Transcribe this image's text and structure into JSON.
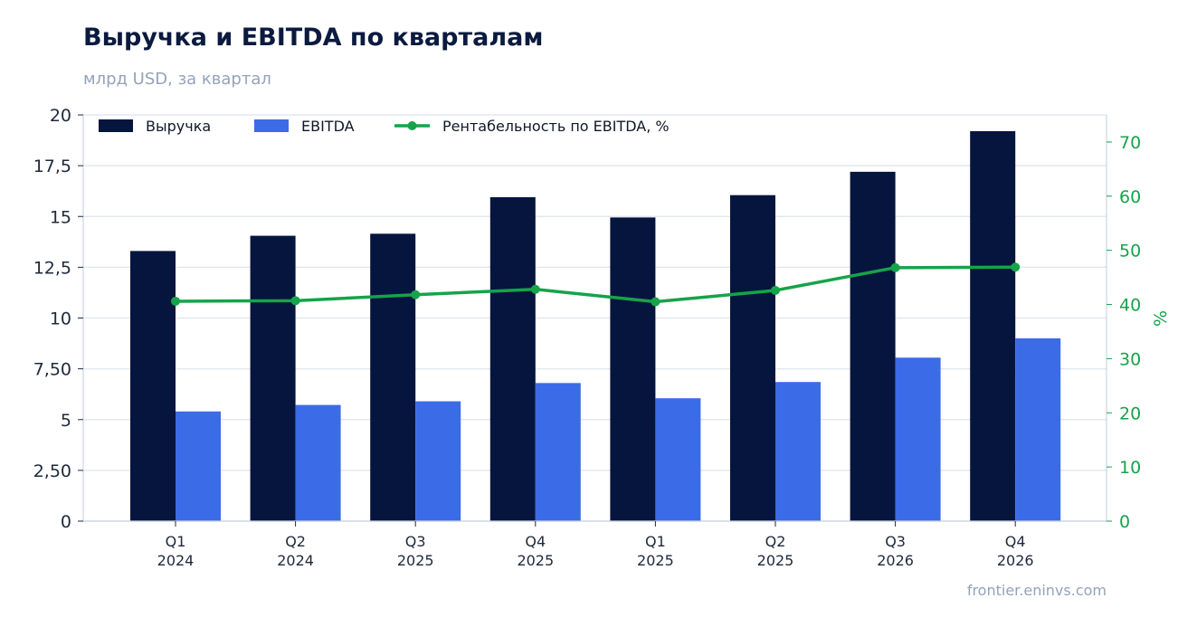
{
  "title": "Выручка и EBITDA по кварталам",
  "subtitle": "млрд USD, за квартал",
  "source": "frontier.eninvs.com",
  "colors": {
    "revenue": "#05153e",
    "ebitda": "#3b6be6",
    "margin": "#16a34a",
    "grid": "#e2e8f0",
    "axis": "#cbd5e1"
  },
  "chart_data": {
    "type": "bar",
    "categories": [
      [
        "Q1",
        "2024"
      ],
      [
        "Q2",
        "2024"
      ],
      [
        "Q3",
        "2025"
      ],
      [
        "Q4",
        "2025"
      ],
      [
        "Q1",
        "2025"
      ],
      [
        "Q2",
        "2025"
      ],
      [
        "Q3",
        "2026"
      ],
      [
        "Q4",
        "2026"
      ]
    ],
    "series": [
      {
        "name": "Выручка",
        "type": "bar",
        "axis": "left",
        "values": [
          13.3,
          14.05,
          14.15,
          15.95,
          14.95,
          16.05,
          17.2,
          19.2
        ]
      },
      {
        "name": "EBITDA",
        "type": "bar",
        "axis": "left",
        "values": [
          5.4,
          5.72,
          5.9,
          6.8,
          6.05,
          6.85,
          8.05,
          9.0
        ]
      },
      {
        "name": "Рентабельность по EBITDA, %",
        "type": "line",
        "axis": "right",
        "values": [
          40.6,
          40.7,
          41.8,
          42.8,
          40.5,
          42.6,
          46.8,
          46.9
        ]
      }
    ],
    "y_left": {
      "min": 0,
      "max": 20,
      "ticks": [
        0,
        2.5,
        5,
        7.5,
        10,
        12.5,
        15,
        17.5,
        20
      ],
      "tick_labels": [
        "0",
        "2,50",
        "5",
        "7,50",
        "10",
        "12,5",
        "15",
        "17,5",
        "20"
      ]
    },
    "y_right": {
      "min": 0,
      "max": 75,
      "label": "%",
      "ticks": [
        0,
        10,
        20,
        30,
        40,
        50,
        60,
        70
      ],
      "tick_labels": [
        "0",
        "10",
        "20",
        "30",
        "40",
        "50",
        "60",
        "70"
      ]
    },
    "grid": true,
    "legend_position": "top-left"
  }
}
